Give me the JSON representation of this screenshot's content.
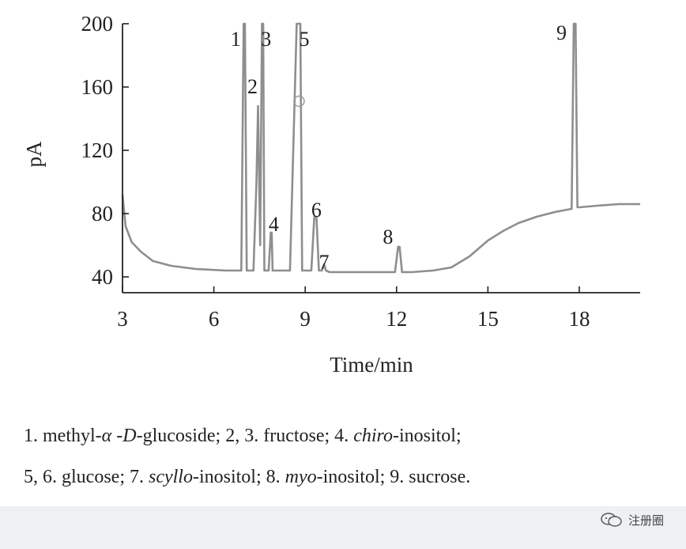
{
  "chart_data": {
    "type": "line",
    "xlabel": "Time/min",
    "ylabel": "pA",
    "xlim": [
      3,
      20
    ],
    "ylim": [
      30,
      200
    ],
    "xticks": [
      3,
      6,
      9,
      12,
      15,
      18
    ],
    "yticks": [
      40,
      80,
      120,
      160,
      200
    ],
    "grid": false,
    "series": [
      {
        "x": [
          3.0,
          3.1,
          3.3,
          3.6,
          4.0,
          4.6,
          5.4,
          6.4,
          6.9,
          6.98,
          7.02,
          7.08,
          7.15,
          7.3,
          7.4,
          7.45,
          7.52,
          7.58,
          7.62,
          7.66,
          7.72,
          7.8,
          7.87,
          7.9,
          7.93,
          7.98,
          8.5,
          8.72,
          8.78,
          8.84,
          8.9,
          9.2,
          9.3,
          9.37,
          9.45,
          9.55,
          9.62,
          9.68,
          9.8,
          10.5,
          11.4,
          11.95,
          12.05,
          12.1,
          12.18,
          12.25,
          12.5,
          13.2,
          13.8,
          14.4,
          15.0,
          15.5,
          16.0,
          16.6,
          17.2,
          17.75,
          17.82,
          17.88,
          17.94,
          18.02,
          18.6,
          19.3,
          20.0
        ],
        "y": [
          92,
          72,
          62,
          56,
          50,
          47,
          45,
          44,
          44,
          200,
          200,
          44,
          44,
          44,
          100,
          148,
          60,
          200,
          200,
          44,
          44,
          44,
          68,
          68,
          44,
          44,
          44,
          200,
          200,
          200,
          44,
          44,
          78,
          78,
          44,
          44,
          48,
          44,
          43,
          43,
          43,
          43,
          59,
          59,
          43,
          43,
          43,
          44,
          46,
          53,
          63,
          69,
          74,
          78,
          81,
          83,
          200,
          200,
          84,
          84,
          85,
          86,
          86
        ],
        "color": "#8e8e8e"
      }
    ],
    "peak_labels": [
      {
        "text": "1",
        "x": 6.9,
        "y": 190
      },
      {
        "text": "2",
        "x": 7.45,
        "y": 160
      },
      {
        "text": "3",
        "x": 7.9,
        "y": 190
      },
      {
        "text": "4",
        "x": 8.15,
        "y": 73
      },
      {
        "text": "5",
        "x": 9.15,
        "y": 190
      },
      {
        "text": "6",
        "x": 9.55,
        "y": 82
      },
      {
        "text": "7",
        "x": 9.8,
        "y": 49
      },
      {
        "text": "8",
        "x": 11.9,
        "y": 65
      },
      {
        "text": "9",
        "x": 17.6,
        "y": 194
      }
    ],
    "marker": {
      "x": 8.8,
      "y": 151
    }
  },
  "caption": {
    "line1": [
      {
        "t": "1. methyl-",
        "i": false
      },
      {
        "t": "α -D",
        "i": true
      },
      {
        "t": "-glucoside; 2, 3. fructose; 4. ",
        "i": false
      },
      {
        "t": "chiro",
        "i": true
      },
      {
        "t": "-inositol;",
        "i": false
      }
    ],
    "line2": [
      {
        "t": "5, 6. glucose; 7. ",
        "i": false
      },
      {
        "t": "scyllo",
        "i": true
      },
      {
        "t": "-inositol; 8. ",
        "i": false
      },
      {
        "t": "myo",
        "i": true
      },
      {
        "t": "-inositol; 9. sucrose.",
        "i": false
      }
    ]
  },
  "watermark": {
    "text": "注册圈",
    "icon": "wechat-icon"
  }
}
